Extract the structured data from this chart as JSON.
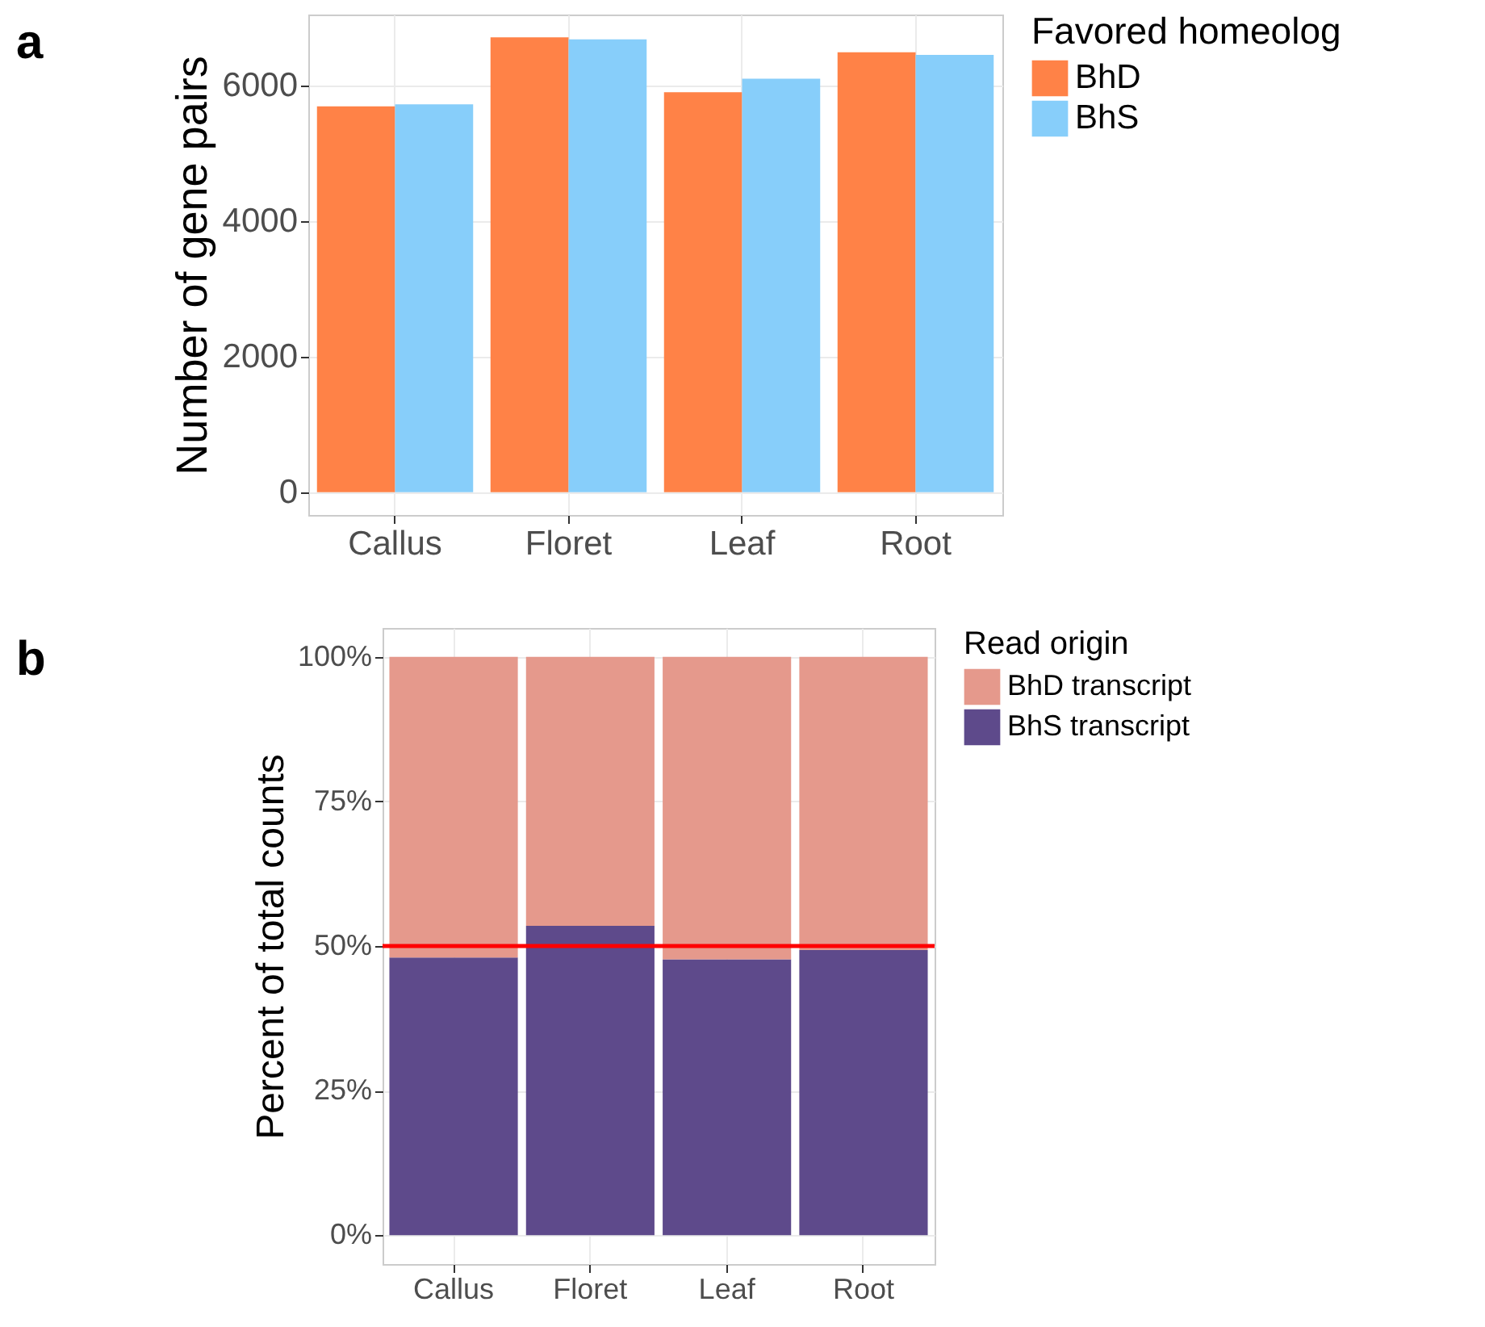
{
  "chart_data": [
    {
      "type": "bar",
      "annotations": [
        "a"
      ],
      "ylabel": "Number of gene pairs",
      "legend_title": "Favored homeolog",
      "legend": "right",
      "grid": true,
      "categories": [
        "Callus",
        "Floret",
        "Leaf",
        "Root"
      ],
      "series": [
        {
          "name": "BhD",
          "color": "#ff8247",
          "values": [
            5690,
            6710,
            5900,
            6490
          ]
        },
        {
          "name": "BhS",
          "color": "#87cefa",
          "values": [
            5720,
            6680,
            6100,
            6450
          ]
        }
      ],
      "ylim": [
        -335,
        7045
      ],
      "yticks": [
        0,
        {
          "value": 2000,
          "label": "2000"
        },
        {
          "value": 4000,
          "label": "4000"
        },
        {
          "value": 6000,
          "label": "6000"
        }
      ]
    },
    {
      "type": "bar",
      "annotations": [
        "b"
      ],
      "ylabel": "Percent of total counts",
      "legend_title": "Read origin",
      "legend": "right",
      "grid": true,
      "stacked": true,
      "categories": [
        "Callus",
        "Floret",
        "Leaf",
        "Root"
      ],
      "series": [
        {
          "name": "BhS transcript",
          "color": "#5e4a8b",
          "values": [
            48.0,
            53.5,
            47.7,
            49.3
          ]
        },
        {
          "name": "BhD transcript",
          "color": "#e5998c",
          "values": [
            52.0,
            46.5,
            52.3,
            50.7
          ]
        }
      ],
      "ylim": [
        -5,
        105
      ],
      "yticks": [
        {
          "value": 0,
          "label": "0%"
        },
        {
          "value": 25,
          "label": "25%"
        },
        {
          "value": 50,
          "label": "50%"
        },
        {
          "value": 75,
          "label": "75%"
        },
        {
          "value": 100,
          "label": "100%"
        }
      ],
      "ref_lines": [
        {
          "axis": "y",
          "value": 50,
          "color": "#ff0000"
        }
      ]
    }
  ]
}
